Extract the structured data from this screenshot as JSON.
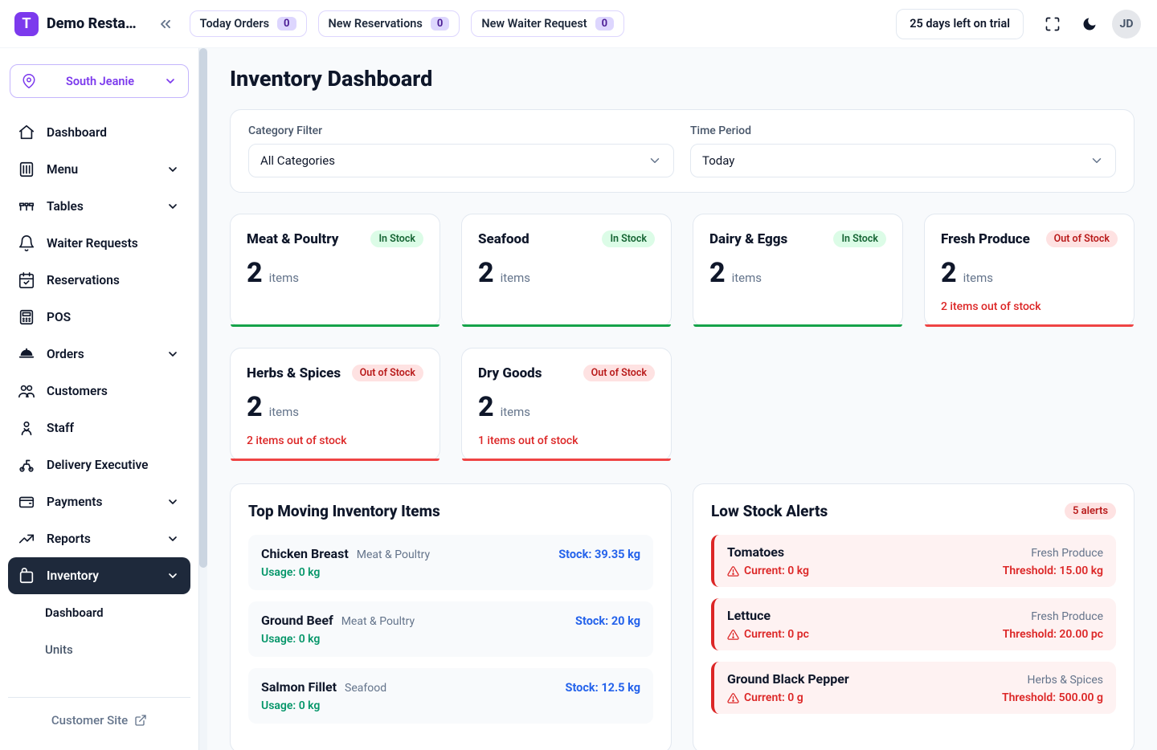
{
  "brand": {
    "logo_letter": "T",
    "name": "Demo Resta…"
  },
  "topbar": {
    "pills": [
      {
        "label": "Today Orders",
        "count": "0"
      },
      {
        "label": "New Reservations",
        "count": "0"
      },
      {
        "label": "New Waiter Request",
        "count": "0"
      }
    ],
    "trial_label": "25 days left on trial",
    "avatar_initials": "JD"
  },
  "location_selector": {
    "label": "South Jeanie"
  },
  "nav": {
    "items": [
      {
        "label": "Dashboard",
        "icon": "home",
        "expandable": false
      },
      {
        "label": "Menu",
        "icon": "menu",
        "expandable": true
      },
      {
        "label": "Tables",
        "icon": "tables",
        "expandable": true
      },
      {
        "label": "Waiter Requests",
        "icon": "bell",
        "expandable": false
      },
      {
        "label": "Reservations",
        "icon": "calendar",
        "expandable": false
      },
      {
        "label": "POS",
        "icon": "pos",
        "expandable": false
      },
      {
        "label": "Orders",
        "icon": "cloche",
        "expandable": true
      },
      {
        "label": "Customers",
        "icon": "users",
        "expandable": false
      },
      {
        "label": "Staff",
        "icon": "staff",
        "expandable": false
      },
      {
        "label": "Delivery Executive",
        "icon": "delivery",
        "expandable": false
      },
      {
        "label": "Payments",
        "icon": "wallet",
        "expandable": true
      },
      {
        "label": "Reports",
        "icon": "reports",
        "expandable": true
      },
      {
        "label": "Inventory",
        "icon": "inventory",
        "expandable": true,
        "active": true,
        "children": [
          {
            "label": "Dashboard",
            "active": true
          },
          {
            "label": "Units",
            "active": false
          }
        ]
      }
    ],
    "footer_link": "Customer Site"
  },
  "page": {
    "title": "Inventory Dashboard",
    "filters": {
      "category_label": "Category Filter",
      "category_value": "All Categories",
      "period_label": "Time Period",
      "period_value": "Today"
    }
  },
  "colors": {
    "in_stock_badge_bg": "#dcfce7",
    "in_stock_badge_fg": "#166534",
    "out_stock_badge_bg": "#fee2e2",
    "out_stock_badge_fg": "#b91c1c",
    "bar_in": "#16a34a",
    "bar_out": "#ef4444",
    "accent": "#7c3aed"
  },
  "categories": [
    {
      "name": "Meat & Poultry",
      "status": "In Stock",
      "count": "2",
      "unit": "items",
      "bar_color": "#16a34a"
    },
    {
      "name": "Seafood",
      "status": "In Stock",
      "count": "2",
      "unit": "items",
      "bar_color": "#16a34a"
    },
    {
      "name": "Dairy & Eggs",
      "status": "In Stock",
      "count": "2",
      "unit": "items",
      "bar_color": "#16a34a"
    },
    {
      "name": "Fresh Produce",
      "status": "Out of Stock",
      "count": "2",
      "unit": "items",
      "bar_color": "#ef4444",
      "oos_text": "2 items out of stock"
    },
    {
      "name": "Herbs & Spices",
      "status": "Out of Stock",
      "count": "2",
      "unit": "items",
      "bar_color": "#ef4444",
      "oos_text": "2 items out of stock"
    },
    {
      "name": "Dry Goods",
      "status": "Out of Stock",
      "count": "2",
      "unit": "items",
      "bar_color": "#ef4444",
      "oos_text": "1 items out of stock"
    }
  ],
  "top_moving": {
    "title": "Top Moving Inventory Items",
    "items": [
      {
        "name": "Chicken Breast",
        "category": "Meat & Poultry",
        "stock": "Stock: 39.35 kg",
        "usage": "Usage: 0 kg"
      },
      {
        "name": "Ground Beef",
        "category": "Meat & Poultry",
        "stock": "Stock: 20 kg",
        "usage": "Usage: 0 kg"
      },
      {
        "name": "Salmon Fillet",
        "category": "Seafood",
        "stock": "Stock: 12.5 kg",
        "usage": "Usage: 0 kg"
      }
    ]
  },
  "low_stock": {
    "title": "Low Stock Alerts",
    "alert_badge": "5 alerts",
    "items": [
      {
        "name": "Tomatoes",
        "category": "Fresh Produce",
        "current": "Current: 0 kg",
        "threshold": "Threshold: 15.00 kg"
      },
      {
        "name": "Lettuce",
        "category": "Fresh Produce",
        "current": "Current: 0 pc",
        "threshold": "Threshold: 20.00 pc"
      },
      {
        "name": "Ground Black Pepper",
        "category": "Herbs & Spices",
        "current": "Current: 0 g",
        "threshold": "Threshold: 500.00 g"
      }
    ]
  }
}
